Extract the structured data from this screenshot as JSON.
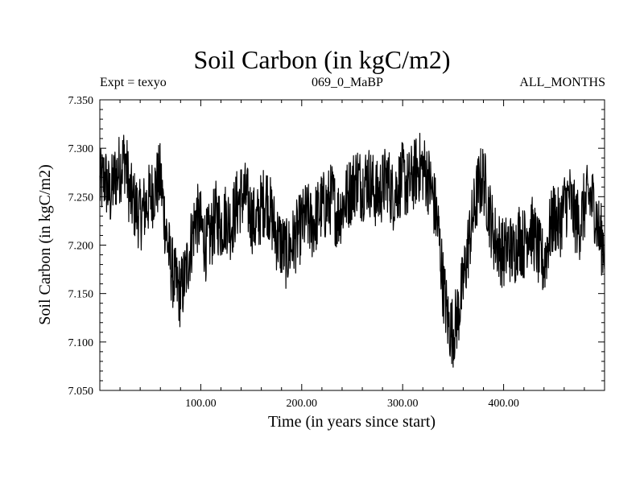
{
  "header": {
    "expt": "Expt = texyo",
    "run": "069_0_MaBP",
    "period": "ALL_MONTHS"
  },
  "chart_data": {
    "type": "line",
    "title": "Soil Carbon (in kgC/m2)",
    "xlabel": "Time (in years since start)",
    "ylabel": "Soil Carbon (in kgC/m2)",
    "xlim": [
      0,
      500
    ],
    "ylim": [
      7.05,
      7.35
    ],
    "x_ticks": [
      100,
      200,
      300,
      400
    ],
    "x_tick_labels": [
      "100.00",
      "200.00",
      "300.00",
      "400.00"
    ],
    "y_ticks": [
      7.05,
      7.1,
      7.15,
      7.2,
      7.25,
      7.3,
      7.35
    ],
    "y_tick_labels": [
      "7.050",
      "7.100",
      "7.150",
      "7.200",
      "7.250",
      "7.300",
      "7.350"
    ],
    "line_color": "#000000",
    "series": [
      {
        "x": [
          0,
          5,
          10,
          15,
          20,
          25,
          30,
          35,
          40,
          45,
          50,
          55,
          60,
          65,
          70,
          75,
          80,
          85,
          90,
          95,
          100,
          105,
          110,
          115,
          120,
          125,
          130,
          135,
          140,
          145,
          150,
          155,
          160,
          165,
          170,
          175,
          180,
          185,
          190,
          195,
          200,
          205,
          210,
          215,
          220,
          225,
          230,
          235,
          240,
          245,
          250,
          255,
          260,
          265,
          270,
          275,
          280,
          285,
          290,
          295,
          300,
          305,
          310,
          315,
          320,
          325,
          330,
          335,
          340,
          345,
          350,
          355,
          360,
          365,
          370,
          375,
          380,
          385,
          390,
          395,
          400,
          405,
          410,
          415,
          420,
          425,
          430,
          435,
          440,
          445,
          450,
          455,
          460,
          465,
          470,
          475,
          480,
          485,
          490,
          495,
          500
        ],
        "values": [
          7.26,
          7.27,
          7.25,
          7.27,
          7.28,
          7.29,
          7.25,
          7.24,
          7.23,
          7.24,
          7.25,
          7.26,
          7.27,
          7.22,
          7.18,
          7.16,
          7.15,
          7.17,
          7.2,
          7.23,
          7.22,
          7.2,
          7.21,
          7.23,
          7.22,
          7.23,
          7.22,
          7.24,
          7.25,
          7.25,
          7.23,
          7.22,
          7.24,
          7.25,
          7.23,
          7.21,
          7.2,
          7.19,
          7.2,
          7.21,
          7.22,
          7.23,
          7.22,
          7.23,
          7.24,
          7.24,
          7.25,
          7.23,
          7.24,
          7.25,
          7.26,
          7.27,
          7.26,
          7.27,
          7.26,
          7.25,
          7.26,
          7.27,
          7.25,
          7.26,
          7.27,
          7.26,
          7.27,
          7.28,
          7.28,
          7.27,
          7.25,
          7.22,
          7.16,
          7.12,
          7.11,
          7.13,
          7.16,
          7.2,
          7.23,
          7.26,
          7.27,
          7.24,
          7.21,
          7.2,
          7.19,
          7.2,
          7.19,
          7.21,
          7.2,
          7.22,
          7.21,
          7.19,
          7.18,
          7.21,
          7.23,
          7.22,
          7.24,
          7.25,
          7.23,
          7.22,
          7.24,
          7.25,
          7.24,
          7.21,
          7.2
        ]
      }
    ]
  }
}
